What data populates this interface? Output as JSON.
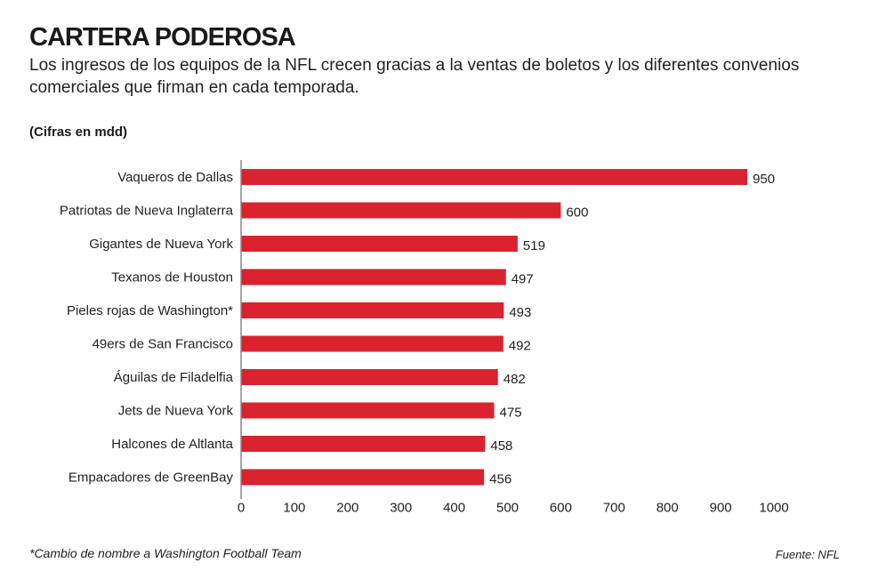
{
  "header": {
    "title": "CARTERA PODEROSA",
    "subtitle": "Los ingresos de los equipos de la NFL crecen gracias a la ventas de boletos y los diferentes convenios comerciales que firman en cada temporada.",
    "units": "(Cifras en mdd)"
  },
  "footer": {
    "note": "*Cambio de nombre a Washington Football Team",
    "source": "Fuente: NFL"
  },
  "chart_data": {
    "type": "bar",
    "orientation": "horizontal",
    "categories": [
      "Vaqueros de Dallas",
      "Patriotas de Nueva Inglaterra",
      "Gigantes de Nueva York",
      "Texanos de Houston",
      "Pieles rojas de Washington*",
      "49ers de San Francisco",
      "Águilas de Filadelfia",
      "Jets de Nueva York",
      "Halcones de Altlanta",
      "Empacadores de GreenBay"
    ],
    "values": [
      950,
      600,
      519,
      497,
      493,
      492,
      482,
      475,
      458,
      456
    ],
    "xticks": [
      0,
      100,
      200,
      300,
      400,
      500,
      600,
      700,
      800,
      900,
      1000
    ],
    "xlim": [
      0,
      1060
    ],
    "bar_color": "#d9232f",
    "grid": false,
    "legend": false
  }
}
